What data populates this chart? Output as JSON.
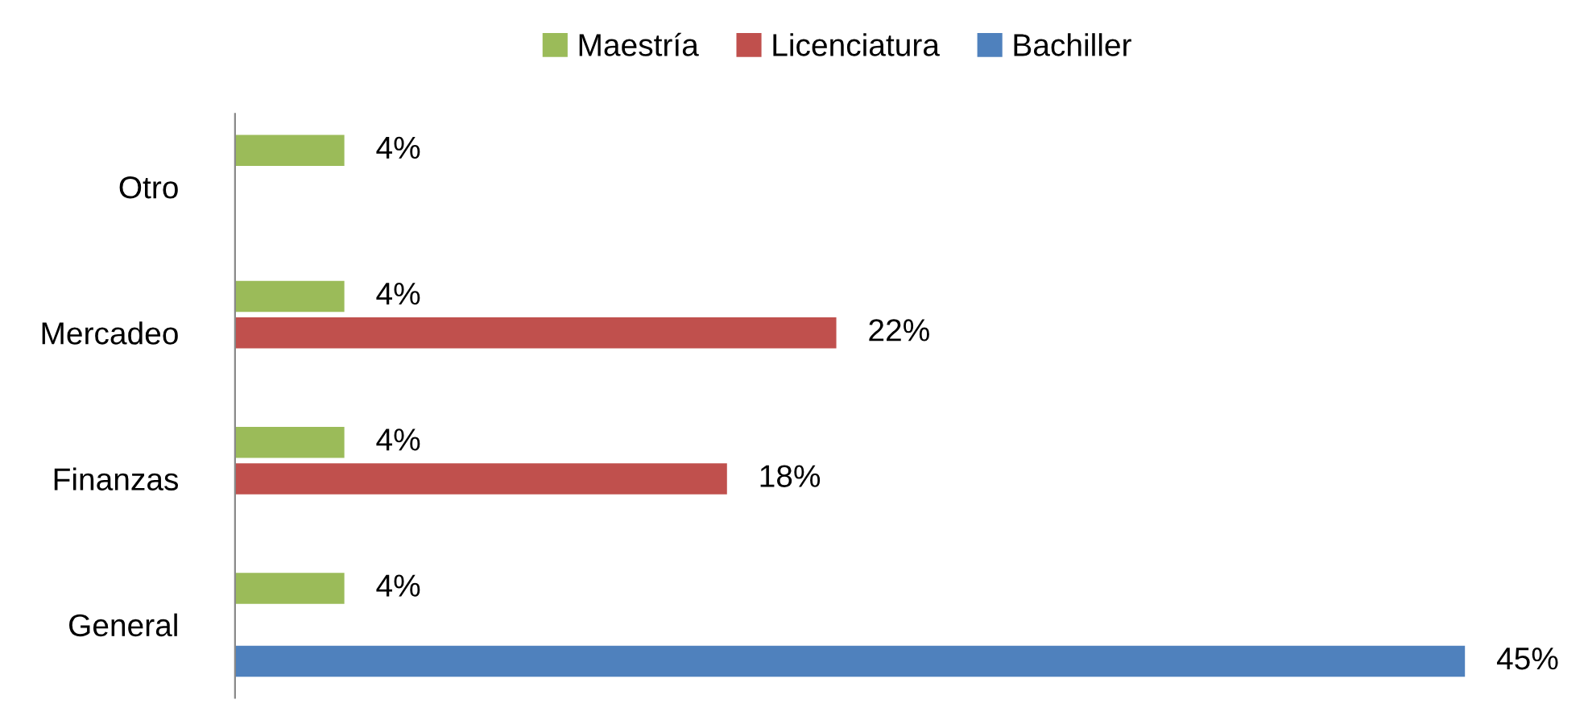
{
  "chart_data": {
    "type": "bar",
    "orientation": "horizontal",
    "categories": [
      "Otro",
      "Mercadeo",
      "Finanzas",
      "General"
    ],
    "series": [
      {
        "name": "Maestría",
        "color": "#9bbb59",
        "values": [
          4,
          4,
          4,
          4
        ],
        "value_labels": [
          "4%",
          "4%",
          "4%",
          "4%"
        ]
      },
      {
        "name": "Licenciatura",
        "color": "#c0504d",
        "values": [
          null,
          22,
          18,
          null
        ],
        "value_labels": [
          null,
          "22%",
          "18%",
          null
        ]
      },
      {
        "name": "Bachiller",
        "color": "#4f81bd",
        "values": [
          null,
          null,
          null,
          45
        ],
        "value_labels": [
          null,
          null,
          null,
          "45%"
        ]
      }
    ],
    "tick_labels": "y",
    "legend": "top",
    "grid": false
  }
}
